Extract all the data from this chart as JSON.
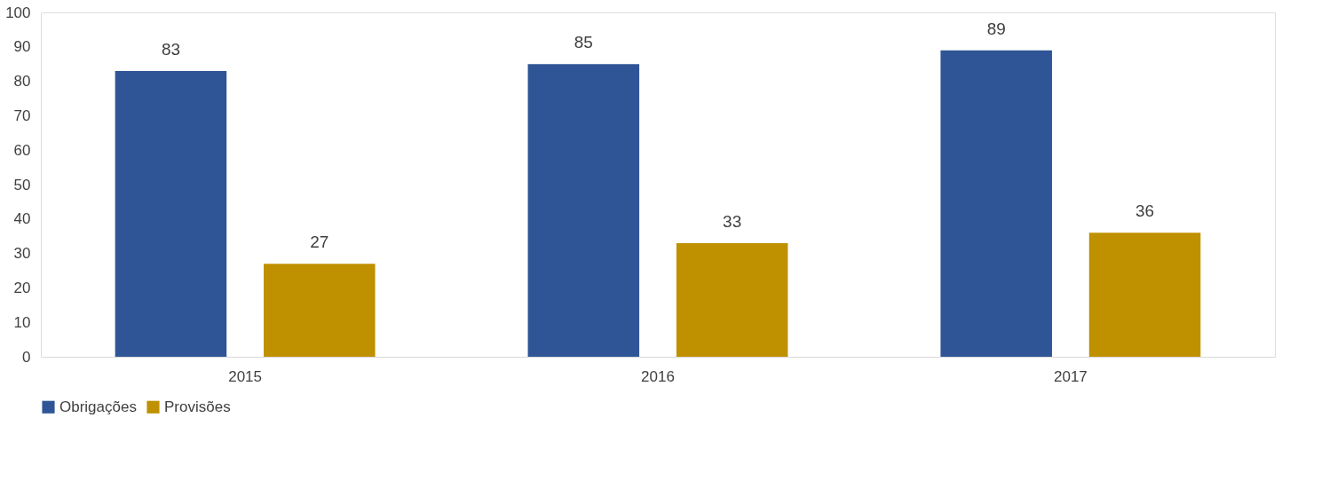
{
  "chart_data": {
    "type": "bar",
    "categories": [
      "2015",
      "2016",
      "2017"
    ],
    "series": [
      {
        "name": "Obrigações",
        "color": "#2f5597",
        "values": [
          83,
          85,
          89
        ]
      },
      {
        "name": "Provisões",
        "color": "#bf9000",
        "values": [
          27,
          33,
          36
        ]
      }
    ],
    "ylim": [
      0,
      100
    ],
    "yticks": [
      0,
      10,
      20,
      30,
      40,
      50,
      60,
      70,
      80,
      90,
      100
    ],
    "grid": false,
    "legend": "bottom",
    "data_labels": true
  }
}
